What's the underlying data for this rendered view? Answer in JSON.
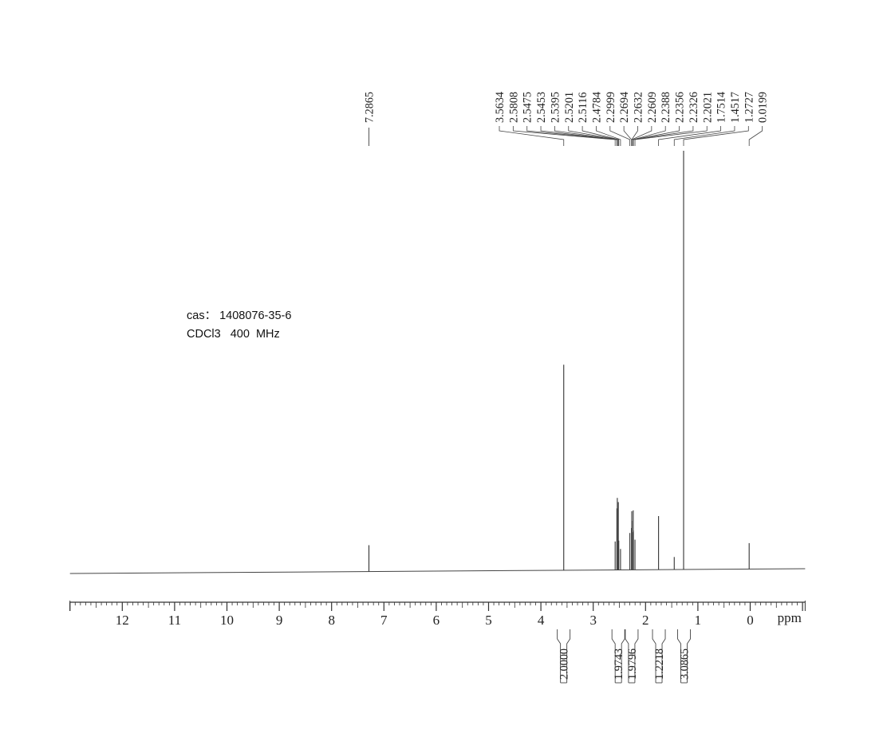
{
  "sample_info": {
    "cas_label": "cas",
    "cas_number": "1408076-35-6",
    "solvent": "CDCl3",
    "frequency": "400",
    "frequency_unit": "MHz"
  },
  "chart_data": {
    "type": "line",
    "title": "",
    "xlabel": "ppm",
    "ylabel": "",
    "xlim": [
      13.0,
      -1.05
    ],
    "x_reversed": true,
    "grid": false,
    "x_ticks": [
      12,
      11,
      10,
      9,
      8,
      7,
      6,
      5,
      4,
      3,
      2,
      1,
      0
    ],
    "x_tick_labels": [
      "12",
      "11",
      "10",
      "9",
      "8",
      "7",
      "6",
      "5",
      "4",
      "3",
      "2",
      "1",
      "0"
    ],
    "minor_tick_step": 0.1,
    "peaks": [
      {
        "ppm": 7.2865,
        "rel_height": 0.063
      },
      {
        "ppm": 3.5634,
        "rel_height": 0.491
      },
      {
        "ppm": 2.5808,
        "rel_height": 0.068
      },
      {
        "ppm": 2.5475,
        "rel_height": 0.147
      },
      {
        "ppm": 2.5453,
        "rel_height": 0.1
      },
      {
        "ppm": 2.5395,
        "rel_height": 0.172
      },
      {
        "ppm": 2.5201,
        "rel_height": 0.162
      },
      {
        "ppm": 2.5116,
        "rel_height": 0.07
      },
      {
        "ppm": 2.4784,
        "rel_height": 0.05
      },
      {
        "ppm": 2.2999,
        "rel_height": 0.088
      },
      {
        "ppm": 2.2694,
        "rel_height": 0.1
      },
      {
        "ppm": 2.2632,
        "rel_height": 0.14
      },
      {
        "ppm": 2.2609,
        "rel_height": 0.117
      },
      {
        "ppm": 2.2388,
        "rel_height": 0.09
      },
      {
        "ppm": 2.2356,
        "rel_height": 0.142
      },
      {
        "ppm": 2.2326,
        "rel_height": 0.094
      },
      {
        "ppm": 2.2021,
        "rel_height": 0.072
      },
      {
        "ppm": 1.7514,
        "rel_height": 0.128
      },
      {
        "ppm": 1.4517,
        "rel_height": 0.03
      },
      {
        "ppm": 1.2727,
        "rel_height": 1.0
      },
      {
        "ppm": 0.0199,
        "rel_height": 0.062
      }
    ],
    "peak_labels": [
      "7.2865",
      "3.5634",
      "2.5808",
      "2.5475",
      "2.5453",
      "2.5395",
      "2.5201",
      "2.5116",
      "2.4784",
      "2.2999",
      "2.2694",
      "2.2632",
      "2.2609",
      "2.2388",
      "2.2356",
      "2.2326",
      "2.2021",
      "1.7514",
      "1.4517",
      "1.2727",
      "0.0199"
    ],
    "integrals": [
      {
        "from": 3.68,
        "to": 3.45,
        "value": "2.0000"
      },
      {
        "from": 2.62,
        "to": 2.42,
        "value": "1.9743"
      },
      {
        "from": 2.36,
        "to": 2.17,
        "value": "1.9796"
      },
      {
        "from": 1.84,
        "to": 1.65,
        "value": "1.2218"
      },
      {
        "from": 1.36,
        "to": 1.17,
        "value": "3.0865"
      }
    ]
  }
}
